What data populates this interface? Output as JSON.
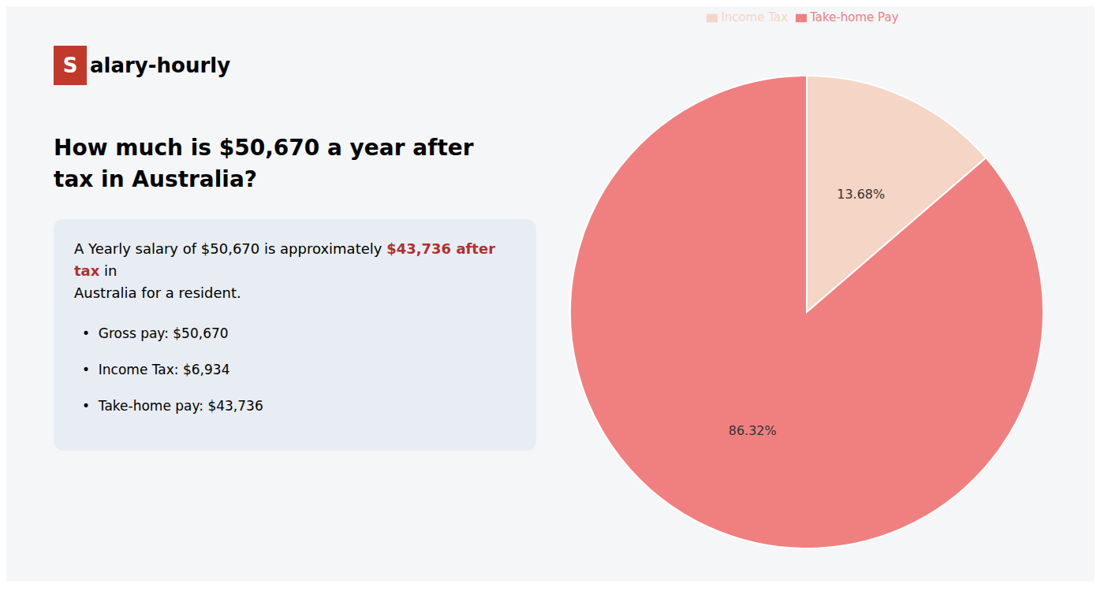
{
  "chart_data": {
    "type": "pie",
    "title": "How much is $50,670 a year after tax in Australia?",
    "categories": [
      "Income Tax",
      "Take-home Pay"
    ],
    "values": [
      13.68,
      86.32
    ],
    "value_labels": [
      "13.68%",
      "86.32%"
    ],
    "colors": [
      "#f5d5c5",
      "#f08080"
    ],
    "data_labels": true,
    "legend": "top",
    "annotations": [
      {
        "text": "S",
        "color": "#c0392b"
      },
      {
        "text": "alary-hourly"
      },
      {
        "text": "A Yearly salary of $50,670 is approximately "
      },
      {
        "text": "$43,736 after tax",
        "color": "#b03030"
      },
      {
        "text": " in"
      },
      {
        "text": "Australia for a resident."
      },
      {
        "text": "•  Gross pay: $50,670"
      },
      {
        "text": "•  Income Tax: $6,934"
      },
      {
        "text": "•  Take-home pay: $43,736"
      }
    ]
  }
}
